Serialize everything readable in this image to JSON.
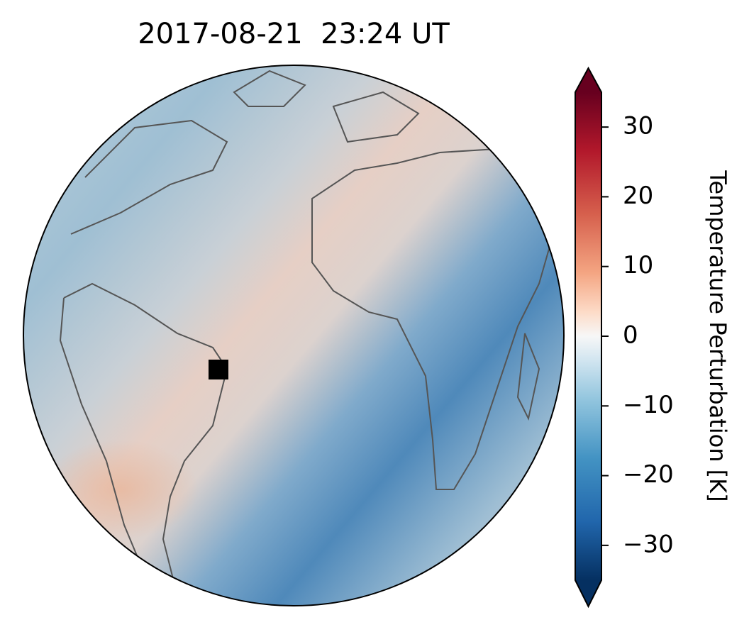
{
  "title": "2017-08-21  23:24 UT",
  "colorbar": {
    "label": "Temperature Perturbation [K]",
    "lim": [
      -35,
      35
    ],
    "ticks": [
      {
        "value": -30,
        "label": "−30"
      },
      {
        "value": -20,
        "label": "−20"
      },
      {
        "value": -10,
        "label": "−10"
      },
      0,
      10,
      20,
      30
    ]
  }
}
